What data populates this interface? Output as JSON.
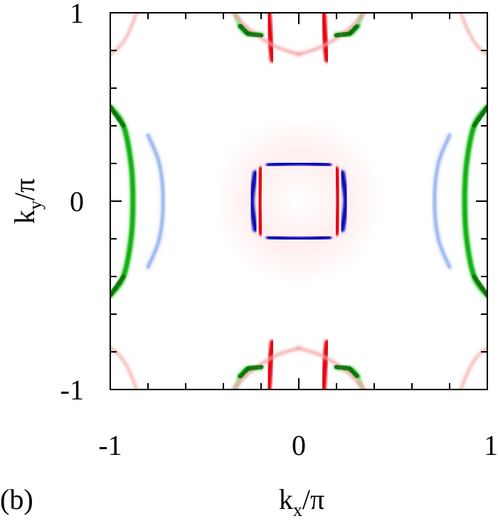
{
  "panel_label": "(b)",
  "chart_data": {
    "type": "heatmap",
    "title": "",
    "xlabel": "k_x/π",
    "ylabel": "k_y/π",
    "xlabel_parts": {
      "base": "k",
      "sub": "x",
      "rest": "/π"
    },
    "ylabel_parts": {
      "base": "k",
      "sub": "y",
      "rest": "/π"
    },
    "xlim": [
      -1,
      1
    ],
    "ylim": [
      -1,
      1
    ],
    "grid": false,
    "legend": "none",
    "x_tick_labels": [
      {
        "value": -1,
        "label": "-1"
      },
      {
        "value": 0,
        "label": "0"
      },
      {
        "value": 1,
        "label": "1"
      }
    ],
    "y_tick_labels": [
      {
        "value": 1,
        "label": "1"
      },
      {
        "value": 0,
        "label": "0"
      },
      {
        "value": -1,
        "label": "-1"
      }
    ],
    "minor_tick_values": [
      -0.8,
      -0.6,
      -0.4,
      -0.2,
      0.2,
      0.4,
      0.6,
      0.8
    ],
    "colors": {
      "red": "#e8000b",
      "dark_blue": "#0a0ab4",
      "light_blue": "#4a7be0",
      "green": "#10b010",
      "dark_green": "#0a6e0a",
      "pink": "#f4a0a0"
    },
    "features": [
      {
        "name": "center-blue-top",
        "shape": "line",
        "color": "dark_blue",
        "opacity": 1,
        "points": [
          [
            -0.16,
            0.19
          ],
          [
            -0.05,
            0.2
          ],
          [
            0.05,
            0.2
          ],
          [
            0.16,
            0.19
          ]
        ]
      },
      {
        "name": "center-blue-bottom",
        "shape": "line",
        "color": "dark_blue",
        "opacity": 1,
        "points": [
          [
            -0.16,
            -0.19
          ],
          [
            -0.05,
            -0.2
          ],
          [
            0.05,
            -0.2
          ],
          [
            0.16,
            -0.19
          ]
        ]
      },
      {
        "name": "center-blue-left",
        "shape": "line",
        "color": "dark_blue",
        "opacity": 1,
        "points": [
          [
            -0.23,
            0.15
          ],
          [
            -0.25,
            0.0
          ],
          [
            -0.23,
            -0.15
          ]
        ]
      },
      {
        "name": "center-blue-right",
        "shape": "line",
        "color": "dark_blue",
        "opacity": 1,
        "points": [
          [
            0.23,
            0.15
          ],
          [
            0.25,
            0.0
          ],
          [
            0.23,
            -0.15
          ]
        ]
      },
      {
        "name": "center-red-left",
        "shape": "line",
        "color": "red",
        "opacity": 1,
        "points": [
          [
            -0.2,
            0.17
          ],
          [
            -0.21,
            0.0
          ],
          [
            -0.2,
            -0.17
          ]
        ]
      },
      {
        "name": "center-red-right",
        "shape": "line",
        "color": "red",
        "opacity": 1,
        "points": [
          [
            0.2,
            0.17
          ],
          [
            0.21,
            0.0
          ],
          [
            0.2,
            -0.17
          ]
        ]
      },
      {
        "name": "top-red-left",
        "shape": "line",
        "color": "red",
        "opacity": 1,
        "points": [
          [
            -0.16,
            1.0
          ],
          [
            -0.15,
            0.85
          ],
          [
            -0.14,
            0.75
          ]
        ]
      },
      {
        "name": "top-red-right",
        "shape": "line",
        "color": "red",
        "opacity": 1,
        "points": [
          [
            0.13,
            1.0
          ],
          [
            0.14,
            0.85
          ],
          [
            0.15,
            0.75
          ]
        ]
      },
      {
        "name": "bottom-red-left",
        "shape": "line",
        "color": "red",
        "opacity": 1,
        "points": [
          [
            -0.16,
            -1.0
          ],
          [
            -0.15,
            -0.85
          ],
          [
            -0.14,
            -0.75
          ]
        ]
      },
      {
        "name": "bottom-red-right",
        "shape": "line",
        "color": "red",
        "opacity": 1,
        "points": [
          [
            0.13,
            -1.0
          ],
          [
            0.14,
            -0.85
          ],
          [
            0.15,
            -0.75
          ]
        ]
      },
      {
        "name": "top-green-left",
        "shape": "line",
        "color": "green",
        "opacity": 1,
        "points": [
          [
            -0.31,
            0.93
          ],
          [
            -0.27,
            0.89
          ],
          [
            -0.2,
            0.88
          ]
        ]
      },
      {
        "name": "top-green-right",
        "shape": "line",
        "color": "green",
        "opacity": 1,
        "points": [
          [
            0.2,
            0.88
          ],
          [
            0.27,
            0.89
          ],
          [
            0.31,
            0.93
          ]
        ]
      },
      {
        "name": "top-green-left-tail",
        "shape": "line",
        "color": "green",
        "opacity": 0.35,
        "points": [
          [
            -0.31,
            0.93
          ],
          [
            -0.33,
            0.98
          ],
          [
            -0.34,
            1.0
          ]
        ]
      },
      {
        "name": "top-green-right-tail",
        "shape": "line",
        "color": "green",
        "opacity": 0.35,
        "points": [
          [
            0.31,
            0.93
          ],
          [
            0.33,
            0.98
          ],
          [
            0.34,
            1.0
          ]
        ]
      },
      {
        "name": "bottom-green-left",
        "shape": "line",
        "color": "green",
        "opacity": 1,
        "points": [
          [
            -0.31,
            -0.93
          ],
          [
            -0.27,
            -0.89
          ],
          [
            -0.2,
            -0.88
          ]
        ]
      },
      {
        "name": "bottom-green-right",
        "shape": "line",
        "color": "green",
        "opacity": 1,
        "points": [
          [
            0.2,
            -0.88
          ],
          [
            0.27,
            -0.89
          ],
          [
            0.31,
            -0.93
          ]
        ]
      },
      {
        "name": "bottom-green-left-tail",
        "shape": "line",
        "color": "green",
        "opacity": 0.35,
        "points": [
          [
            -0.31,
            -0.93
          ],
          [
            -0.33,
            -0.98
          ],
          [
            -0.34,
            -1.0
          ]
        ]
      },
      {
        "name": "bottom-green-right-tail",
        "shape": "line",
        "color": "green",
        "opacity": 0.35,
        "points": [
          [
            0.31,
            -0.93
          ],
          [
            0.33,
            -0.98
          ],
          [
            0.34,
            -1.0
          ]
        ]
      },
      {
        "name": "left-green-arc",
        "shape": "line",
        "color": "green",
        "opacity": 1,
        "points": [
          [
            -1.0,
            0.5
          ],
          [
            -0.93,
            0.4
          ],
          [
            -0.89,
            0.2
          ],
          [
            -0.88,
            0.0
          ],
          [
            -0.89,
            -0.2
          ],
          [
            -0.93,
            -0.4
          ],
          [
            -1.0,
            -0.5
          ]
        ]
      },
      {
        "name": "right-green-arc",
        "shape": "line",
        "color": "green",
        "opacity": 1,
        "points": [
          [
            1.0,
            0.5
          ],
          [
            0.93,
            0.4
          ],
          [
            0.89,
            0.2
          ],
          [
            0.88,
            0.0
          ],
          [
            0.89,
            -0.2
          ],
          [
            0.93,
            -0.4
          ],
          [
            1.0,
            -0.5
          ]
        ]
      },
      {
        "name": "left-blue-arc",
        "shape": "line",
        "color": "light_blue",
        "opacity": 0.5,
        "points": [
          [
            -0.8,
            0.35
          ],
          [
            -0.74,
            0.2
          ],
          [
            -0.72,
            0.0
          ],
          [
            -0.74,
            -0.2
          ],
          [
            -0.8,
            -0.35
          ]
        ]
      },
      {
        "name": "right-blue-arc",
        "shape": "line",
        "color": "light_blue",
        "opacity": 0.5,
        "points": [
          [
            0.8,
            0.35
          ],
          [
            0.74,
            0.2
          ],
          [
            0.72,
            0.0
          ],
          [
            0.74,
            -0.2
          ],
          [
            0.8,
            -0.35
          ]
        ]
      },
      {
        "name": "top-pink-left",
        "shape": "line",
        "color": "pink",
        "opacity": 0.65,
        "points": [
          [
            -0.35,
            1.0
          ],
          [
            -0.25,
            0.9
          ],
          [
            -0.12,
            0.82
          ],
          [
            0.0,
            0.78
          ]
        ]
      },
      {
        "name": "top-pink-right",
        "shape": "line",
        "color": "pink",
        "opacity": 0.65,
        "points": [
          [
            0.0,
            0.78
          ],
          [
            0.12,
            0.82
          ],
          [
            0.25,
            0.9
          ],
          [
            0.35,
            1.0
          ]
        ]
      },
      {
        "name": "bottom-pink-left",
        "shape": "line",
        "color": "pink",
        "opacity": 0.65,
        "points": [
          [
            -0.35,
            -1.0
          ],
          [
            -0.25,
            -0.9
          ],
          [
            -0.12,
            -0.82
          ],
          [
            0.0,
            -0.78
          ]
        ]
      },
      {
        "name": "bottom-pink-right",
        "shape": "line",
        "color": "pink",
        "opacity": 0.65,
        "points": [
          [
            0.0,
            -0.78
          ],
          [
            0.12,
            -0.82
          ],
          [
            0.25,
            -0.9
          ],
          [
            0.35,
            -1.0
          ]
        ]
      },
      {
        "name": "corner-pink-top-left",
        "shape": "line",
        "color": "pink",
        "opacity": 0.55,
        "points": [
          [
            -1.0,
            0.78
          ],
          [
            -0.95,
            0.82
          ],
          [
            -0.9,
            0.9
          ],
          [
            -0.86,
            1.0
          ]
        ]
      },
      {
        "name": "corner-pink-top-right",
        "shape": "line",
        "color": "pink",
        "opacity": 0.55,
        "points": [
          [
            1.0,
            0.78
          ],
          [
            0.95,
            0.82
          ],
          [
            0.9,
            0.9
          ],
          [
            0.86,
            1.0
          ]
        ]
      },
      {
        "name": "corner-pink-bottom-left",
        "shape": "line",
        "color": "pink",
        "opacity": 0.55,
        "points": [
          [
            -1.0,
            -0.78
          ],
          [
            -0.95,
            -0.82
          ],
          [
            -0.9,
            -0.9
          ],
          [
            -0.86,
            -1.0
          ]
        ]
      },
      {
        "name": "corner-pink-bottom-right",
        "shape": "line",
        "color": "pink",
        "opacity": 0.55,
        "points": [
          [
            1.0,
            -0.78
          ],
          [
            0.95,
            -0.82
          ],
          [
            0.9,
            -0.9
          ],
          [
            0.86,
            -1.0
          ]
        ]
      }
    ]
  }
}
